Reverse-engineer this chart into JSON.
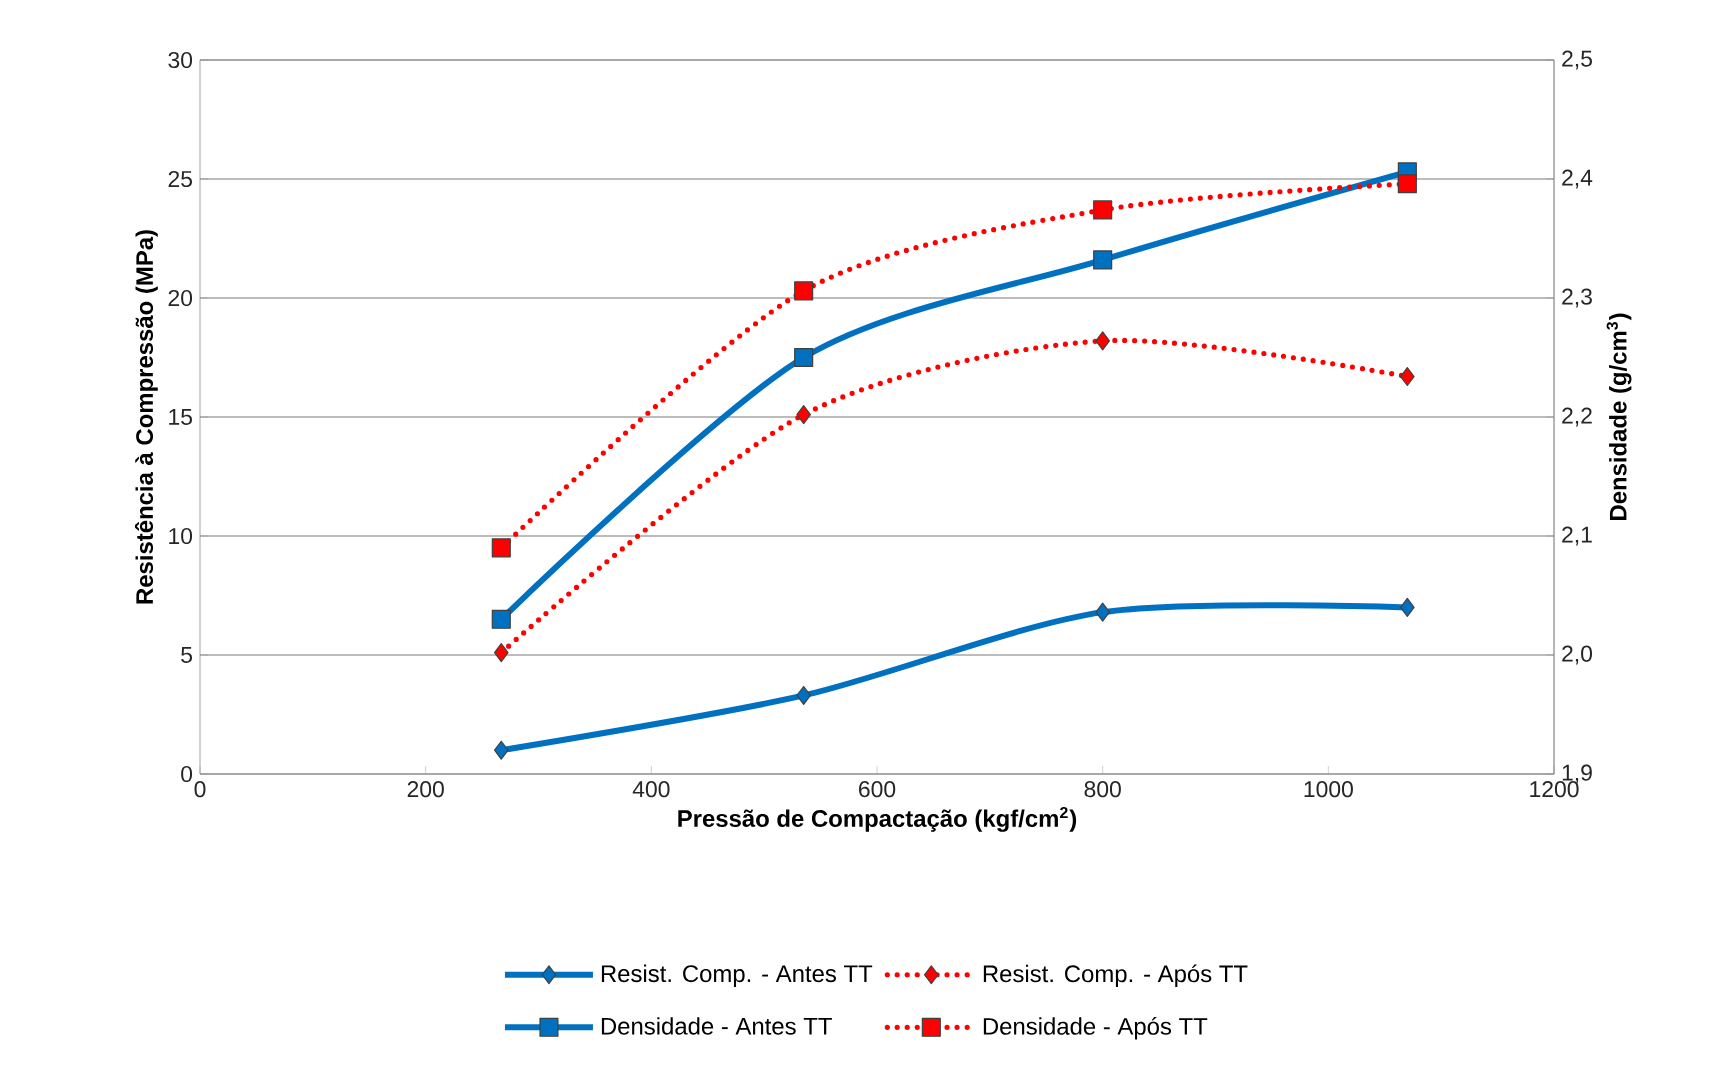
{
  "chart_data": {
    "type": "line",
    "xlabel": "Pressão de Compactação (kgf/cm$^{2}$)",
    "ylabel": "Resistência à Compressão (MPa)",
    "y2label": "Densidade (g/cm$^{3}$)",
    "x": [
      267,
      535,
      800,
      1070
    ],
    "xlim": [
      0,
      1200
    ],
    "xticks": [
      0,
      200,
      400,
      600,
      800,
      1000,
      1200
    ],
    "ylim": [
      0,
      30
    ],
    "yticks": [
      0,
      5,
      10,
      15,
      20,
      25,
      30
    ],
    "y2lim": [
      1.9,
      2.5
    ],
    "y2ticks": [
      {
        "value": 1.9,
        "label": "1,9"
      },
      {
        "value": 2.0,
        "label": "2,0"
      },
      {
        "value": 2.1,
        "label": "2,1"
      },
      {
        "value": 2.2,
        "label": "2,2"
      },
      {
        "value": 2.3,
        "label": "2,3"
      },
      {
        "value": 2.4,
        "label": "2,4"
      },
      {
        "value": 2.5,
        "label": "2,5"
      }
    ],
    "grid": "y",
    "legend": "bottom",
    "series": [
      {
        "name": "Resist. Comp. - Antes TT",
        "color": "#0070c0",
        "values": [
          1.0,
          3.3,
          6.8,
          7.0
        ],
        "marker": "diamond",
        "line_style": "solid"
      },
      {
        "name": "Resist. Comp. - Após TT",
        "color": "#ff0000",
        "values": [
          5.1,
          15.1,
          18.2,
          16.7
        ],
        "marker": "diamond",
        "line_style": "dotted"
      },
      {
        "name": "Densidade - Antes TT",
        "color": "#0070c0",
        "values": [
          2.03,
          2.25,
          2.332,
          2.406
        ],
        "marker": "square",
        "line_style": "solid",
        "axis": "y2"
      },
      {
        "name": "Densidade - Após TT",
        "color": "#ff0000",
        "values": [
          2.09,
          2.306,
          2.374,
          2.396
        ],
        "marker": "square",
        "line_style": "dotted",
        "axis": "y2"
      }
    ]
  }
}
